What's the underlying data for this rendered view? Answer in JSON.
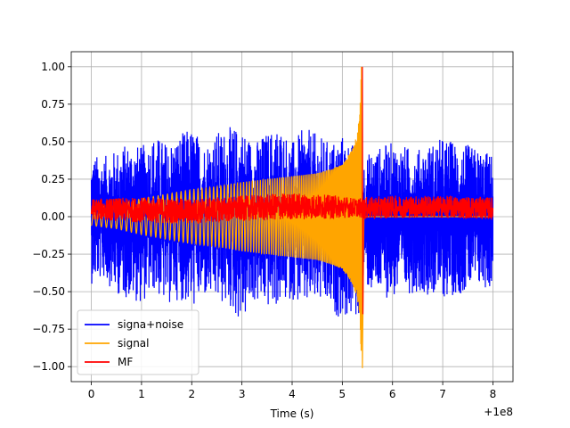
{
  "chart_data": {
    "type": "line",
    "title": "",
    "xlabel": "Time (s)",
    "ylabel": "",
    "x_offset_label": "+1e8",
    "xlim": [
      -0.4,
      8.4
    ],
    "ylim": [
      -1.1,
      1.1
    ],
    "x_ticks": [
      0,
      1,
      2,
      3,
      4,
      5,
      6,
      7,
      8
    ],
    "x_tick_labels": [
      "0",
      "1",
      "2",
      "3",
      "4",
      "5",
      "6",
      "7",
      "8"
    ],
    "y_ticks": [
      -1.0,
      -0.75,
      -0.5,
      -0.25,
      0.0,
      0.25,
      0.5,
      0.75,
      1.0
    ],
    "y_tick_labels": [
      "−1.00",
      "−0.75",
      "−0.50",
      "−0.25",
      "0.00",
      "0.25",
      "0.50",
      "0.75",
      "1.00"
    ],
    "grid": true,
    "legend_position": "lower-left",
    "colors": {
      "signal_noise": "#0000ff",
      "signal": "#ffa500",
      "mf": "#ff0000",
      "grid": "#b0b0b0"
    },
    "series": [
      {
        "name": "signa+noise",
        "color": "#0000ff",
        "x": [
          0.0,
          0.25,
          0.5,
          0.75,
          1.0,
          1.25,
          1.5,
          1.75,
          2.0,
          2.25,
          2.5,
          2.75,
          3.0,
          3.25,
          3.5,
          3.75,
          4.0,
          4.25,
          4.5,
          4.75,
          5.0,
          5.25,
          5.35,
          5.4,
          5.6,
          6.0,
          6.5,
          7.0,
          7.5,
          8.0
        ],
        "upper": [
          0.42,
          0.4,
          0.45,
          0.5,
          0.47,
          0.55,
          0.5,
          0.55,
          0.6,
          0.5,
          0.57,
          0.6,
          0.6,
          0.5,
          0.57,
          0.62,
          0.5,
          0.6,
          0.55,
          0.5,
          0.55,
          0.48,
          0.45,
          0.38,
          0.45,
          0.5,
          0.45,
          0.53,
          0.48,
          0.42
        ],
        "lower": [
          -0.45,
          -0.42,
          -0.52,
          -0.55,
          -0.58,
          -0.5,
          -0.6,
          -0.55,
          -0.62,
          -0.55,
          -0.58,
          -0.62,
          -0.72,
          -0.58,
          -0.62,
          -0.6,
          -0.55,
          -0.62,
          -0.58,
          -0.65,
          -0.68,
          -0.7,
          -0.7,
          -0.45,
          -0.52,
          -0.55,
          -0.5,
          -0.55,
          -0.5,
          -0.48
        ]
      },
      {
        "name": "signal",
        "color": "#ffa500",
        "envelope_x": [
          0.0,
          0.5,
          1.0,
          1.5,
          2.0,
          2.5,
          3.0,
          3.5,
          4.0,
          4.5,
          4.8,
          5.0,
          5.2,
          5.3,
          5.35,
          5.38
        ],
        "envelope_amp": [
          0.06,
          0.08,
          0.12,
          0.15,
          0.18,
          0.2,
          0.23,
          0.25,
          0.27,
          0.29,
          0.32,
          0.35,
          0.45,
          0.55,
          0.7,
          1.0
        ],
        "peak_x": 5.38,
        "min_value": -1.01,
        "max_value": 1.0
      },
      {
        "name": "MF",
        "color": "#ff0000",
        "band_center": 0.05,
        "band_x": [
          0.0,
          1.0,
          2.0,
          3.0,
          4.0,
          5.0,
          5.3,
          5.45,
          6.0,
          7.0,
          8.0
        ],
        "band_upper": [
          0.12,
          0.13,
          0.12,
          0.14,
          0.16,
          0.14,
          0.12,
          0.13,
          0.14,
          0.14,
          0.13
        ],
        "band_lower": [
          -0.02,
          -0.04,
          -0.05,
          -0.03,
          -0.02,
          -0.01,
          0.0,
          -0.02,
          -0.01,
          -0.01,
          -0.02
        ],
        "peak_x": 5.4,
        "peak_value": 1.0,
        "peak_min": -0.65
      }
    ]
  }
}
